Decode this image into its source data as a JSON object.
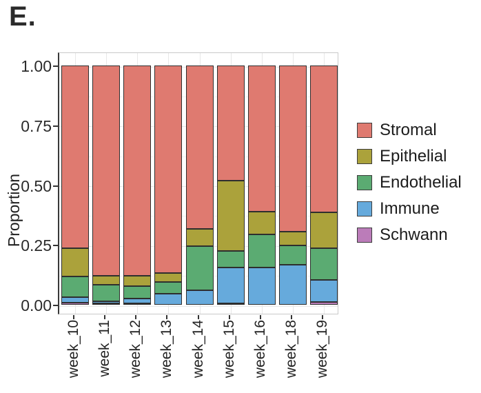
{
  "panel_label": "E.",
  "chart_data": {
    "type": "bar",
    "stacked": true,
    "orientation": "vertical",
    "title": "",
    "xlabel": "",
    "ylabel": "Proportion",
    "ylim": [
      0,
      1
    ],
    "y_tick_values": [
      0,
      0.25,
      0.5,
      0.75,
      1.0
    ],
    "y_tick_labels": [
      "0.00",
      "0.25",
      "0.50",
      "0.75",
      "1.00"
    ],
    "y_minor_gridlines": [
      0.125,
      0.375,
      0.625,
      0.875
    ],
    "grid": true,
    "legend_position": "right",
    "categories": [
      "week_10",
      "week_11",
      "week_12",
      "week_13",
      "week_14",
      "week_15",
      "week_16",
      "week_18",
      "week_19"
    ],
    "series": [
      {
        "name": "Stromal",
        "color": "#DF7A70",
        "values": [
          0.765,
          0.88,
          0.881,
          0.868,
          0.683,
          0.482,
          0.611,
          0.695,
          0.614
        ]
      },
      {
        "name": "Epithelial",
        "color": "#ABA23B",
        "values": [
          0.117,
          0.037,
          0.044,
          0.038,
          0.072,
          0.293,
          0.096,
          0.057,
          0.15
        ]
      },
      {
        "name": "Endothelial",
        "color": "#5BAB72",
        "values": [
          0.086,
          0.068,
          0.053,
          0.048,
          0.185,
          0.068,
          0.137,
          0.08,
          0.132
        ]
      },
      {
        "name": "Immune",
        "color": "#66AADC",
        "values": [
          0.022,
          0.01,
          0.019,
          0.046,
          0.06,
          0.151,
          0.156,
          0.168,
          0.092
        ]
      },
      {
        "name": "Schwann",
        "color": "#BB7CB9",
        "values": [
          0.01,
          0.005,
          0.003,
          0.0,
          0.0,
          0.006,
          0.0,
          0.0,
          0.012
        ]
      }
    ],
    "stack_order_bottom_to_top": [
      "Schwann",
      "Immune",
      "Endothelial",
      "Epithelial",
      "Stromal"
    ],
    "segment_border_color": "#2e2e2e",
    "axis_color": "#333333"
  }
}
